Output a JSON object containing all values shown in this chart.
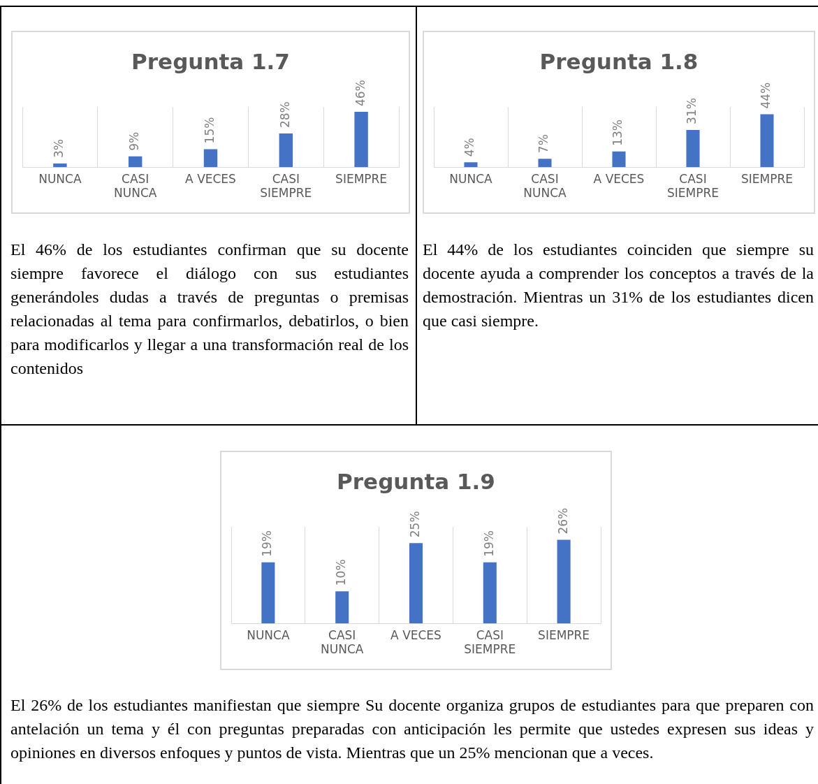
{
  "chart_data": [
    {
      "type": "bar",
      "title": "Pregunta 1.7",
      "categories": [
        "NUNCA",
        "CASI NUNCA",
        "A VECES",
        "CASI SIEMPRE",
        "SIEMPRE"
      ],
      "values": [
        3,
        9,
        15,
        28,
        46
      ],
      "value_labels": [
        "3%",
        "9%",
        "15%",
        "28%",
        "46%"
      ],
      "color": "#4472c4",
      "grid": "x",
      "annotations": [
        "El 46% de los estudiantes confirman que su docente siempre favorece el diálogo con sus estudiantes generándoles dudas a través de preguntas o premisas relacionadas al tema para confirmarlos, debatirlos, o bien para modificarlos y llegar a una transformación real de los contenidos"
      ]
    },
    {
      "type": "bar",
      "title": "Pregunta 1.8",
      "categories": [
        "NUNCA",
        "CASI NUNCA",
        "A VECES",
        "CASI SIEMPRE",
        "SIEMPRE"
      ],
      "values": [
        4,
        7,
        13,
        31,
        44
      ],
      "value_labels": [
        "4%",
        "7%",
        "13%",
        "31%",
        "44%"
      ],
      "color": "#4472c4",
      "grid": "x",
      "annotations": [
        "El 44% de los estudiantes coinciden que siempre su docente ayuda a comprender los conceptos a través de la demostración. Mientras un 31% de los estudiantes dicen que casi siempre."
      ]
    },
    {
      "type": "bar",
      "title": "Pregunta 1.9",
      "categories": [
        "NUNCA",
        "CASI NUNCA",
        "A VECES",
        "CASI SIEMPRE",
        "SIEMPRE"
      ],
      "values": [
        19,
        10,
        25,
        19,
        26
      ],
      "value_labels": [
        "19%",
        "10%",
        "25%",
        "19%",
        "26%"
      ],
      "color": "#4472c4",
      "grid": "x",
      "annotations": [
        "El 26% de los estudiantes manifiestan que siempre Su docente organiza grupos de estudiantes para que preparen con antelación un tema y él con preguntas preparadas con anticipación les permite que ustedes expresen sus ideas y opiniones en diversos enfoques y puntos de vista. Mientras que un 25% mencionan que a veces."
      ]
    }
  ]
}
